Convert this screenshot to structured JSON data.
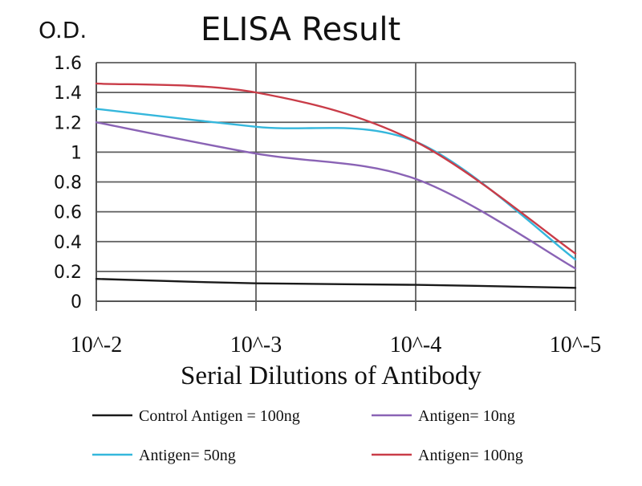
{
  "chart_data": {
    "type": "line",
    "title": "ELISA Result",
    "ylabel": "O.D.",
    "xlabel": "Serial Dilutions of Antibody",
    "categories": [
      "10^-2",
      "10^-3",
      "10^-4",
      "10^-5"
    ],
    "ylim": [
      0,
      1.6
    ],
    "yticks": [
      "0",
      "0.2",
      "0.4",
      "0.6",
      "0.8",
      "1",
      "1.2",
      "1.4",
      "1.6"
    ],
    "grid": true,
    "legend_position": "bottom",
    "series": [
      {
        "name": "Control Antigen = 100ng",
        "color": "#1a1a1a",
        "values": [
          0.15,
          0.12,
          0.11,
          0.09
        ]
      },
      {
        "name": "Antigen= 10ng",
        "color": "#8a63b5",
        "values": [
          1.2,
          0.99,
          0.82,
          0.22
        ]
      },
      {
        "name": "Antigen= 50ng",
        "color": "#35b7dc",
        "values": [
          1.29,
          1.17,
          1.07,
          0.28
        ]
      },
      {
        "name": "Antigen= 100ng",
        "color": "#c93c48",
        "values": [
          1.46,
          1.4,
          1.07,
          0.32
        ]
      }
    ]
  }
}
